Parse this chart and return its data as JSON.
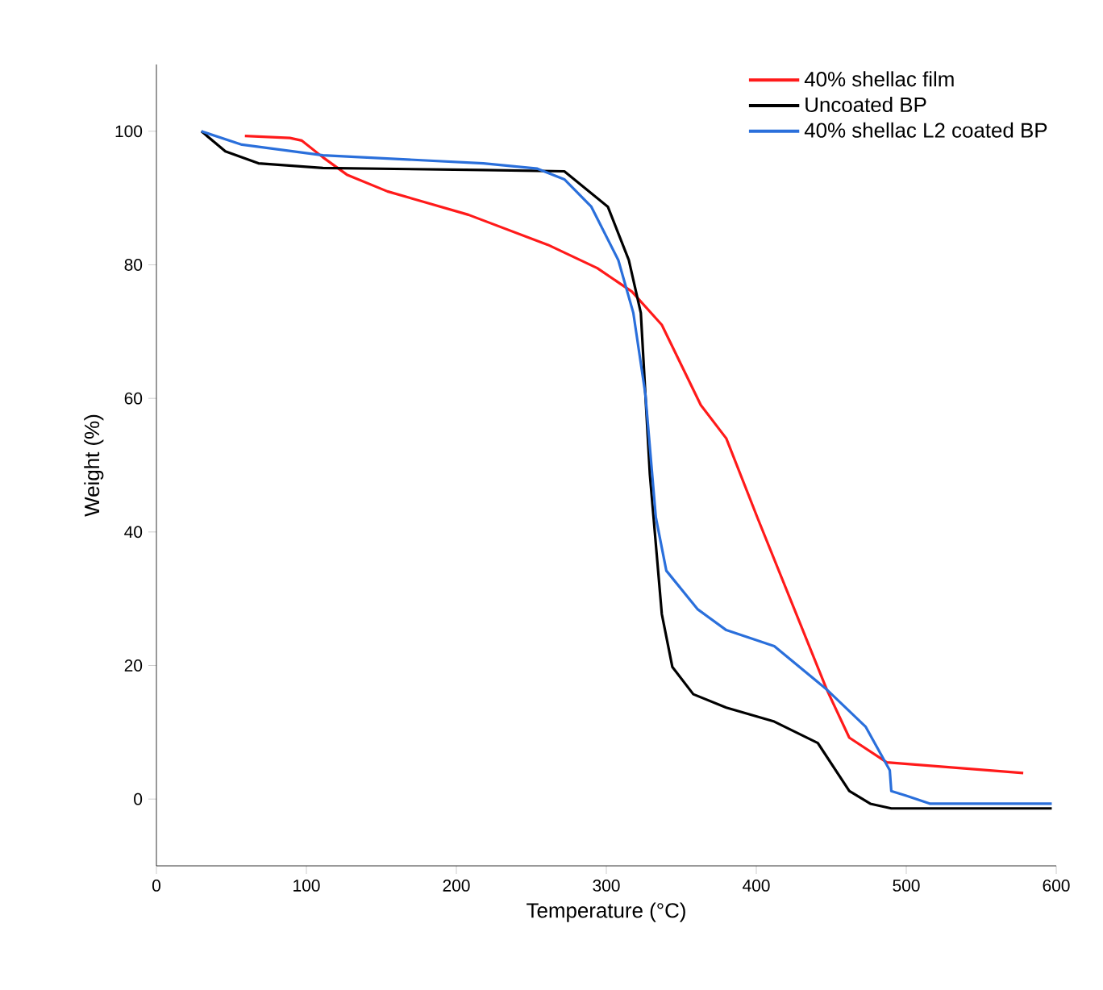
{
  "chart_data": {
    "type": "line",
    "xlabel": "Temperature (°C)",
    "ylabel": "Weight (%)",
    "xlim": [
      0,
      600
    ],
    "ylim": [
      -10,
      110
    ],
    "xticks": [
      0,
      100,
      200,
      300,
      400,
      500,
      600
    ],
    "yticks": [
      0,
      20,
      40,
      60,
      80,
      100
    ],
    "legend": "top right",
    "marker": "none",
    "line_style": "solid",
    "grid": false,
    "series": [
      {
        "name": "40% shellac film",
        "color": "#ff1a1a",
        "x": [
          59,
          89,
          97,
          111,
          127,
          154,
          208,
          261,
          294,
          317,
          337,
          363,
          380,
          401,
          447,
          462,
          487,
          578
        ],
        "values": [
          99.3,
          99,
          98.6,
          96.1,
          93.5,
          91,
          87.5,
          83,
          79.5,
          76,
          71,
          59,
          54,
          42,
          16.4,
          9.2,
          5.5,
          3.9
        ]
      },
      {
        "name": "Uncoated BP",
        "color": "#000000",
        "x": [
          30,
          46,
          68,
          111,
          218,
          272,
          301,
          315,
          323,
          329,
          337,
          344,
          358,
          380,
          412,
          441,
          462,
          476,
          490,
          597
        ],
        "values": [
          100,
          97,
          95.2,
          94.5,
          94.2,
          94,
          88.7,
          80.7,
          72.8,
          48.7,
          27.7,
          19.8,
          15.7,
          13.7,
          11.6,
          8.4,
          1.2,
          -0.7,
          -1.4,
          -1.4
        ]
      },
      {
        "name": "40% shellac L2 coated BP",
        "color": "#2a6fdb",
        "x": [
          30,
          57,
          111,
          218,
          254,
          272,
          290,
          308,
          318,
          326,
          333,
          340,
          361,
          380,
          412,
          447,
          473,
          489,
          490,
          500,
          516,
          597
        ],
        "values": [
          100,
          98,
          96.4,
          95.2,
          94.4,
          92.8,
          88.7,
          80.7,
          72.8,
          60.7,
          42.2,
          34.2,
          28.4,
          25.3,
          22.9,
          16.4,
          10.8,
          4.3,
          1.2,
          0.5,
          -0.7,
          -0.7
        ]
      }
    ]
  }
}
